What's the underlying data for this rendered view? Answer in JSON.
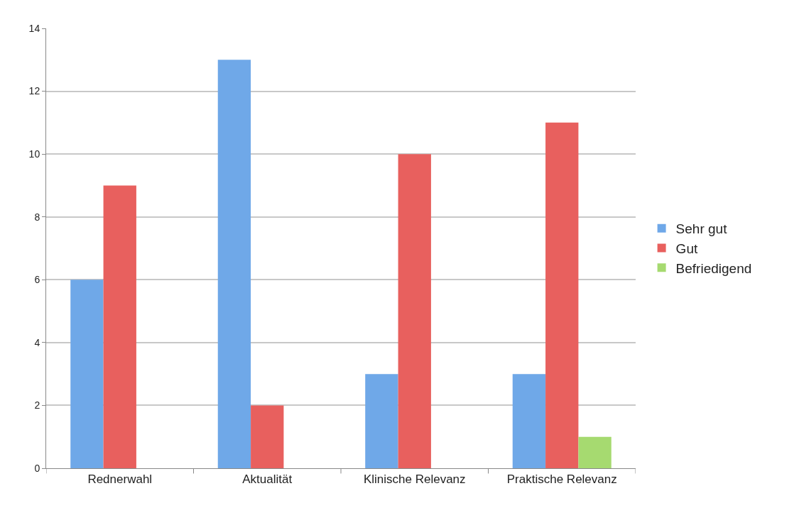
{
  "chart_data": {
    "type": "bar",
    "categories": [
      "Rednerwahl",
      "Aktualität",
      "Klinische Relevanz",
      "Praktische Relevanz"
    ],
    "series": [
      {
        "name": "Sehr gut",
        "color": "#6fa8e8",
        "values": [
          6,
          13,
          3,
          3
        ]
      },
      {
        "name": "Gut",
        "color": "#e8605e",
        "values": [
          9,
          2,
          10,
          11
        ]
      },
      {
        "name": "Befriedigend",
        "color": "#a6da70",
        "values": [
          null,
          null,
          null,
          1
        ]
      }
    ],
    "ylim": [
      0,
      14
    ],
    "yticks": [
      0,
      2,
      4,
      6,
      8,
      10,
      12,
      14
    ],
    "grid": "y",
    "legend": "right"
  }
}
